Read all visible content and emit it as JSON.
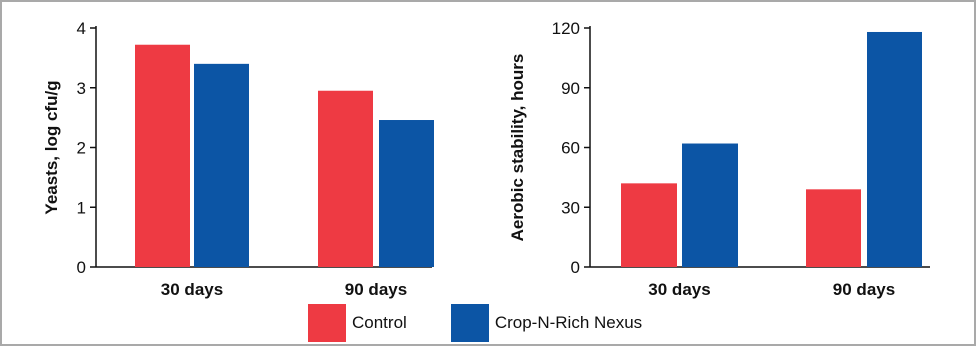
{
  "chart_data": [
    {
      "type": "bar",
      "categories": [
        "30 days",
        "90 days"
      ],
      "series": [
        {
          "name": "Control",
          "values": [
            3.72,
            2.95
          ]
        },
        {
          "name": "Crop-N-Rich Nexus",
          "values": [
            3.4,
            2.46
          ]
        }
      ],
      "ylabel": "Yeasts, log cfu/g",
      "ylim": [
        0,
        4
      ],
      "yticks": [
        "0",
        "1",
        "2",
        "3",
        "4"
      ],
      "grid": false
    },
    {
      "type": "bar",
      "categories": [
        "30 days",
        "90 days"
      ],
      "series": [
        {
          "name": "Control",
          "values": [
            42,
            39
          ]
        },
        {
          "name": "Crop-N-Rich Nexus",
          "values": [
            62,
            118
          ]
        }
      ],
      "ylabel": "Aerobic stability, hours",
      "ylim": [
        0,
        120
      ],
      "yticks": [
        "0",
        "30",
        "60",
        "90",
        "120"
      ],
      "grid": false
    }
  ],
  "legend": {
    "placement": "bottom",
    "items": [
      {
        "label": "Control",
        "color": "#ee3a43"
      },
      {
        "label": "Crop-N-Rich Nexus",
        "color": "#0c55a5"
      }
    ]
  }
}
